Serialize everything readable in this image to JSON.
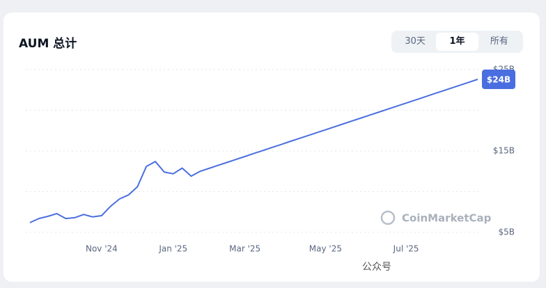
{
  "chart_data": {
    "type": "line",
    "title": "AUM 总计",
    "tabs": [
      "30天",
      "1年",
      "所有"
    ],
    "selected_tab": 1,
    "categories": [
      null,
      null,
      null,
      null,
      null,
      null,
      null,
      null,
      "Nov '24",
      null,
      null,
      null,
      null,
      null,
      null,
      null,
      "Jan '25",
      null,
      null,
      null,
      null,
      null,
      null,
      null,
      "Mar '25",
      null,
      null,
      null,
      null,
      null,
      null,
      null,
      null,
      "May '25",
      null,
      null,
      null,
      null,
      null,
      null,
      null,
      null,
      "Jul '25",
      null,
      null,
      null,
      null,
      null,
      null,
      null,
      null
    ],
    "series": [
      {
        "name": "AUM",
        "color": "#4a6ee0",
        "values": [
          6.2,
          6.7,
          6.97,
          7.3,
          6.7,
          6.8,
          7.2,
          6.9,
          7.05,
          8.2,
          9.1,
          9.6,
          10.6,
          13.1,
          13.7,
          12.4,
          12.2,
          12.9,
          11.9,
          12.5,
          12.86,
          13.23,
          13.59,
          13.96,
          14.32,
          14.69,
          15.05,
          15.42,
          15.78,
          16.15,
          16.51,
          16.87,
          17.24,
          17.6,
          17.97,
          18.33,
          18.7,
          19.06,
          19.43,
          19.79,
          20.15,
          20.52,
          20.88,
          21.25,
          21.61,
          21.98,
          22.34,
          22.71,
          23.07,
          23.44,
          23.8
        ],
        "last_value_label": "$24B"
      }
    ],
    "ylim": [
      5,
      25
    ],
    "yticks": [
      {
        "value": 5,
        "label": "$5B"
      },
      {
        "value": 15,
        "label": "$15B"
      },
      {
        "value": 25,
        "label": "$25B"
      }
    ],
    "minor_gridlines": [
      10,
      20
    ],
    "grid": true,
    "watermark": "CoinMarketCap",
    "footer_overlay": "公众号"
  }
}
